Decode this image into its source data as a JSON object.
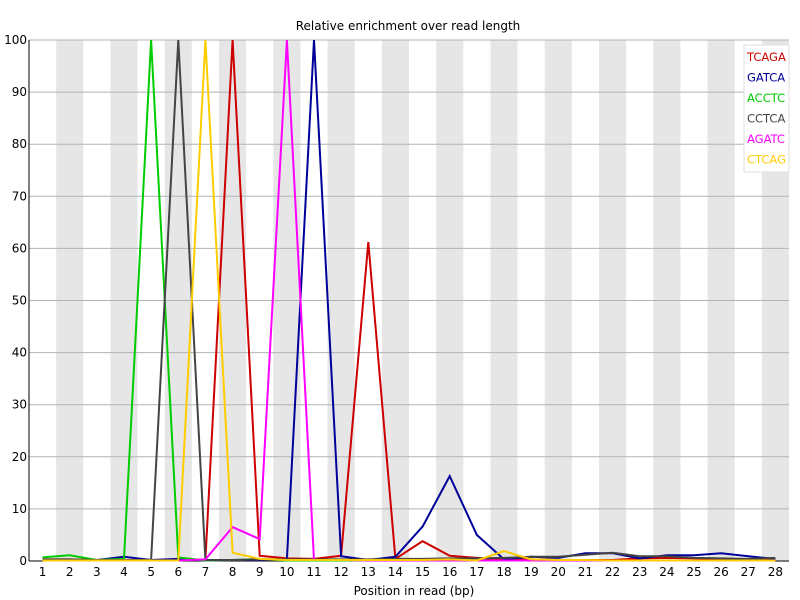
{
  "chart_data": {
    "type": "line",
    "title": "Relative enrichment over read length",
    "xlabel": "Position in read (bp)",
    "ylabel": "",
    "x": [
      1,
      2,
      3,
      4,
      5,
      6,
      7,
      8,
      9,
      10,
      11,
      12,
      13,
      14,
      15,
      16,
      17,
      18,
      19,
      20,
      21,
      22,
      23,
      24,
      25,
      26,
      27,
      28
    ],
    "xlim": [
      1,
      28
    ],
    "ylim": [
      0,
      100
    ],
    "yticks": [
      0,
      10,
      20,
      30,
      40,
      50,
      60,
      70,
      80,
      90,
      100
    ],
    "grid": "horizontal lines with alternating grey vertical bands",
    "legend": "top-right",
    "series": [
      {
        "name": "TCAGA",
        "color": "#cc0000",
        "values": [
          0.3,
          0.3,
          0.2,
          0.2,
          0.1,
          0.3,
          0.2,
          100,
          1,
          0.5,
          0.4,
          1,
          61.2,
          0.4,
          3.8,
          1,
          0.6,
          0.3,
          0.3,
          0.2,
          0.2,
          0.2,
          0.5,
          0.6,
          0.5,
          0.4,
          0.3,
          0.2
        ]
      },
      {
        "name": "GATCA",
        "color": "#000099",
        "values": [
          0.2,
          0.2,
          0.2,
          0.8,
          0.2,
          0.4,
          0.1,
          0.2,
          0.2,
          0.3,
          100,
          0.9,
          0.2,
          0.8,
          6.6,
          16.3,
          5,
          0.3,
          0.8,
          0.6,
          1.5,
          1.5,
          0.5,
          1.1,
          1.1,
          1.5,
          0.9,
          0.4
        ]
      },
      {
        "name": "ACCTC",
        "color": "#00cc00",
        "values": [
          0.7,
          1.1,
          0.2,
          0.4,
          100,
          0.7,
          0.1,
          0.2,
          0.4,
          0.1,
          0.1,
          0.1,
          0.1,
          0.1,
          0.1,
          0.1,
          0.1,
          0.1,
          0.1,
          0.1,
          0.1,
          0.1,
          0.1,
          0.1,
          0.1,
          0.1,
          0.1,
          0.1
        ]
      },
      {
        "name": "CCTCA",
        "color": "#444444",
        "values": [
          0.3,
          0.3,
          0.2,
          0.2,
          0.2,
          100,
          0.2,
          0.2,
          0.3,
          0.3,
          0.3,
          0.3,
          0.3,
          0.4,
          0.4,
          0.5,
          0.5,
          0.6,
          0.8,
          0.8,
          1.2,
          1.6,
          0.9,
          0.9,
          0.6,
          0.5,
          0.4,
          0.6
        ]
      },
      {
        "name": "AGATC",
        "color": "#ff00ff",
        "values": [
          0.1,
          0.1,
          0.1,
          0.1,
          0.1,
          0.1,
          0.3,
          6.5,
          4.2,
          100,
          0.2,
          0.2,
          0.1,
          0.1,
          0.1,
          0.1,
          0.1,
          0.1,
          0.1,
          0.1,
          0.1,
          0.1,
          0.1,
          0.1,
          0.1,
          0.1,
          0.1,
          0.1
        ]
      },
      {
        "name": "CTCAG",
        "color": "#ffcc00",
        "values": [
          0.1,
          0.1,
          0.1,
          0.1,
          0.1,
          0.1,
          100,
          1.6,
          0.4,
          0.2,
          0.2,
          0.2,
          0.2,
          0.2,
          0.2,
          0.3,
          0.1,
          1.9,
          0.3,
          0.2,
          0.2,
          0.1,
          0.1,
          0.1,
          0.1,
          0.1,
          0.1,
          0.1
        ]
      }
    ]
  }
}
